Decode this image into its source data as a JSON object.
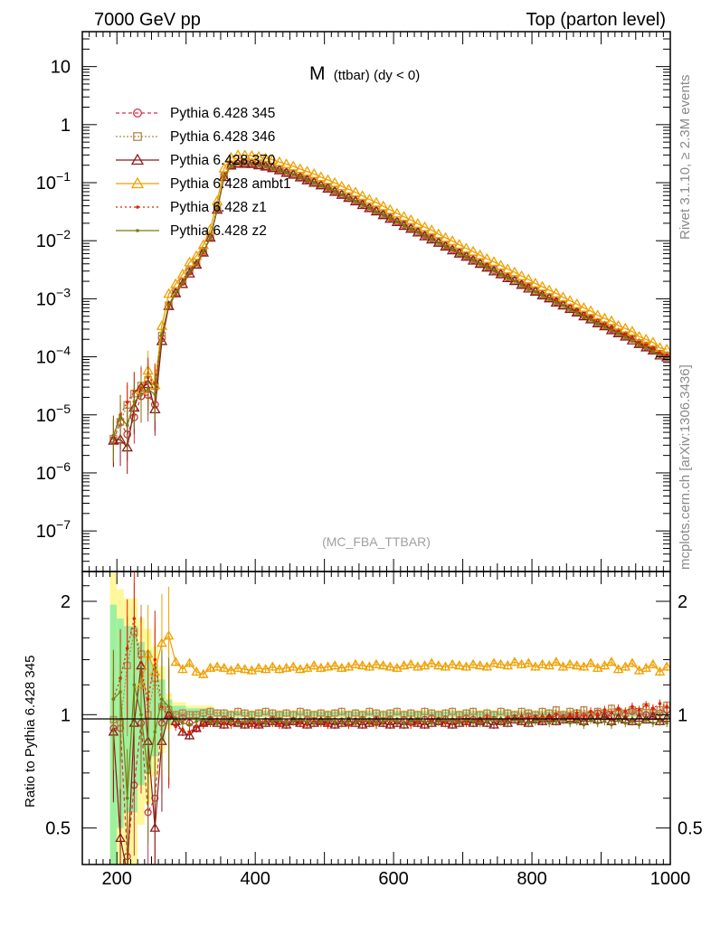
{
  "header": {
    "left": "7000 GeV pp",
    "right": "Top (parton level)"
  },
  "side_labels": {
    "top": "Rivet 3.1.10, ≥ 2.3M events",
    "bottom": "mcplots.cern.ch [arXiv:1306.3436]"
  },
  "main_title": {
    "main": "M",
    "sub": "(ttbar) (dy < 0)"
  },
  "analysis_label": "(MC_FBA_TTBAR)",
  "ratio_ylabel": "Ratio to Pythia 6.428 345",
  "chart_data": {
    "type": "line",
    "x_range": [
      150,
      1000
    ],
    "upper": {
      "yscale": "log",
      "ylim": [
        2e-08,
        40
      ],
      "y_tick_labels": [
        {
          "v": 10,
          "base": "10",
          "exp": ""
        },
        {
          "v": 1,
          "base": "1",
          "exp": ""
        },
        {
          "v": 0.1,
          "base": "10",
          "exp": "−1"
        },
        {
          "v": 0.01,
          "base": "10",
          "exp": "−2"
        },
        {
          "v": 0.001,
          "base": "10",
          "exp": "−3"
        },
        {
          "v": 0.0001,
          "base": "10",
          "exp": "−4"
        },
        {
          "v": 1e-05,
          "base": "10",
          "exp": "−5"
        },
        {
          "v": 1e-06,
          "base": "10",
          "exp": "−6"
        },
        {
          "v": 1e-07,
          "base": "10",
          "exp": "−7"
        }
      ]
    },
    "lower": {
      "yscale": "log",
      "ylim": [
        0.4,
        2.4
      ],
      "y_tick_labels": [
        {
          "v": 2,
          "label": "2"
        },
        {
          "v": 1,
          "label": "1"
        },
        {
          "v": 0.5,
          "label": "0.5"
        }
      ]
    },
    "x_tick_labels": [
      200,
      400,
      600,
      800,
      1000
    ],
    "legend_position": "top-left",
    "x": [
      185,
      195,
      205,
      215,
      225,
      235,
      245,
      255,
      265,
      275,
      285,
      295,
      305,
      315,
      325,
      335,
      345,
      355,
      365,
      375,
      385,
      395,
      405,
      415,
      425,
      435,
      445,
      455,
      465,
      475,
      485,
      495,
      505,
      515,
      525,
      535,
      545,
      555,
      565,
      575,
      585,
      595,
      605,
      615,
      625,
      635,
      645,
      655,
      665,
      675,
      685,
      695,
      705,
      715,
      725,
      735,
      745,
      755,
      765,
      775,
      785,
      795,
      805,
      815,
      825,
      835,
      845,
      855,
      865,
      875,
      885,
      895,
      905,
      915,
      925,
      935,
      945,
      955,
      965,
      975,
      985,
      995
    ],
    "reference": [
      5e-07,
      4e-06,
      8e-06,
      1.1e-05,
      1.4e-05,
      2.2e-05,
      4e-05,
      2.5e-05,
      0.00022,
      0.00075,
      0.0013,
      0.002,
      0.0031,
      0.0042,
      0.0066,
      0.0118,
      0.036,
      0.133,
      0.206,
      0.224,
      0.225,
      0.222,
      0.212,
      0.2,
      0.186,
      0.172,
      0.157,
      0.143,
      0.13,
      0.117,
      0.105,
      0.0938,
      0.0833,
      0.0738,
      0.0651,
      0.0572,
      0.0502,
      0.0439,
      0.0383,
      0.0334,
      0.0291,
      0.0254,
      0.0221,
      0.0192,
      0.0167,
      0.0146,
      0.0127,
      0.0111,
      0.00962,
      0.00837,
      0.00728,
      0.00633,
      0.00551,
      0.00479,
      0.00417,
      0.00363,
      0.00316,
      0.00275,
      0.00239,
      0.00208,
      0.00181,
      0.00158,
      0.00137,
      0.00119,
      0.00104,
      0.0009,
      0.00079,
      0.00068,
      0.0006,
      0.00052,
      0.00045,
      0.00039,
      0.00034,
      0.0003,
      0.00026,
      0.00023,
      0.0002,
      0.00017,
      0.00015,
      0.00013,
      0.00011,
      0.0001
    ],
    "reference_band": [
      {
        "x": [
          190,
          200
        ],
        "rel": 1.2
      },
      {
        "x": [
          200,
          210
        ],
        "rel": 1.0
      },
      {
        "x": [
          210,
          220
        ],
        "rel": 0.9
      },
      {
        "x": [
          220,
          230
        ],
        "rel": 0.9
      },
      {
        "x": [
          230,
          240
        ],
        "rel": 0.7
      },
      {
        "x": [
          240,
          250
        ],
        "rel": 0.6
      },
      {
        "x": [
          250,
          260
        ],
        "rel": 0.45
      },
      {
        "x": [
          260,
          270
        ],
        "rel": 0.3
      },
      {
        "x": [
          270,
          280
        ],
        "rel": 0.12
      },
      {
        "x": [
          280,
          300
        ],
        "rel": 0.07
      },
      {
        "x": [
          300,
          340
        ],
        "rel": 0.05
      },
      {
        "x": [
          340,
          1000
        ],
        "rel": 0.025
      }
    ],
    "series": [
      {
        "name": "Pythia 6.428 345",
        "color": "#cc3344",
        "marker": "circle",
        "dash": "4,3",
        "ratio": [
          0,
          0.92,
          0.92,
          0.42,
          0.65,
          0.95,
          0.55,
          0.6,
          0.95,
          1.0,
          0.95,
          0.98,
          0.95,
          0.92,
          0.95,
          0.97,
          0.96,
          0.97,
          0.96,
          0.95,
          0.96,
          0.96,
          0.95,
          0.96,
          0.97,
          0.96,
          0.95,
          0.96,
          0.96,
          0.97,
          0.96,
          0.96,
          0.97,
          0.96,
          0.96,
          0.95,
          0.96,
          0.97,
          0.96,
          0.97,
          0.96,
          0.97,
          0.96,
          0.97,
          0.96,
          0.96,
          0.97,
          0.98,
          0.96,
          0.97,
          0.96,
          0.97,
          0.98,
          0.97,
          0.96,
          0.98,
          0.97,
          0.96,
          0.97,
          0.98,
          0.97,
          0.99,
          0.98,
          0.97,
          0.98,
          0.99,
          0.98,
          0.99,
          0.98,
          0.99,
          1.0,
          1.01,
          1.0,
          0.99,
          1.01,
          1.0,
          1.02,
          1.01,
          1.0,
          1.02,
          1.01,
          1.03
        ]
      },
      {
        "name": "Pythia 6.428 346",
        "color": "#b8864a",
        "marker": "square",
        "dash": "2,2",
        "ratio": [
          0,
          0.97,
          0.95,
          1.35,
          1.66,
          1.45,
          1.0,
          1.25,
          1.05,
          1.03,
          1.0,
          1.01,
          1.0,
          1.0,
          1.01,
          1.02,
          1.01,
          1.01,
          1.0,
          1.02,
          1.01,
          1.0,
          1.01,
          1.02,
          1.01,
          1.0,
          1.01,
          1.0,
          1.02,
          1.01,
          1.0,
          1.01,
          1.0,
          1.01,
          1.02,
          1.0,
          1.01,
          1.0,
          1.02,
          1.01,
          1.0,
          1.01,
          1.02,
          1.0,
          1.01,
          1.0,
          1.02,
          1.01,
          1.0,
          1.01,
          1.02,
          1.0,
          1.01,
          1.02,
          1.0,
          1.01,
          1.0,
          1.02,
          1.01,
          1.0,
          1.02,
          1.01,
          1.0,
          1.02,
          1.01,
          1.03,
          1.0,
          1.02,
          1.01,
          1.03,
          1.0,
          1.02,
          1.01,
          1.04,
          1.02,
          1.01,
          1.03,
          1.02,
          1.05,
          1.01,
          1.03,
          1.06
        ]
      },
      {
        "name": "Pythia 6.428 370",
        "color": "#8b1a1a",
        "marker": "triangle",
        "dash": "",
        "ratio": [
          0,
          0.9,
          0.47,
          0.25,
          0.95,
          1.35,
          0.85,
          0.5,
          0.85,
          1.0,
          0.96,
          0.9,
          0.88,
          0.92,
          0.95,
          0.96,
          0.95,
          0.94,
          0.96,
          0.95,
          0.94,
          0.95,
          0.94,
          0.95,
          0.96,
          0.95,
          0.94,
          0.96,
          0.95,
          0.94,
          0.95,
          0.96,
          0.95,
          0.94,
          0.95,
          0.96,
          0.95,
          0.94,
          0.95,
          0.96,
          0.95,
          0.94,
          0.95,
          0.94,
          0.96,
          0.95,
          0.94,
          0.95,
          0.96,
          0.95,
          0.94,
          0.95,
          0.96,
          0.95,
          0.96,
          0.95,
          0.94,
          0.96,
          0.95,
          0.97,
          0.96,
          0.95,
          0.97,
          0.96,
          0.98,
          0.96,
          0.97,
          0.98,
          0.97,
          0.96,
          0.98,
          0.97,
          0.99,
          0.96,
          0.98,
          0.97,
          0.96,
          0.98,
          0.97,
          0.99,
          0.96,
          0.98
        ]
      },
      {
        "name": "Pythia 6.428 ambt1",
        "color": "#f0a000",
        "marker": "triangle",
        "dash": "",
        "ratio": [
          0,
          0.0,
          0.0,
          0.0,
          0.0,
          1.2,
          1.45,
          1.3,
          1.55,
          1.62,
          1.38,
          1.32,
          1.37,
          1.3,
          1.28,
          1.33,
          1.34,
          1.33,
          1.31,
          1.33,
          1.32,
          1.31,
          1.33,
          1.32,
          1.34,
          1.32,
          1.33,
          1.34,
          1.32,
          1.33,
          1.35,
          1.33,
          1.34,
          1.35,
          1.33,
          1.34,
          1.36,
          1.35,
          1.34,
          1.36,
          1.35,
          1.34,
          1.33,
          1.35,
          1.36,
          1.34,
          1.35,
          1.37,
          1.35,
          1.34,
          1.36,
          1.35,
          1.34,
          1.36,
          1.35,
          1.34,
          1.37,
          1.36,
          1.35,
          1.38,
          1.36,
          1.37,
          1.34,
          1.36,
          1.35,
          1.38,
          1.34,
          1.36,
          1.35,
          1.34,
          1.37,
          1.33,
          1.35,
          1.38,
          1.32,
          1.34,
          1.37,
          1.31,
          1.33,
          1.36,
          1.3,
          1.34
        ]
      },
      {
        "name": "Pythia 6.428 z1",
        "color": "#dd2200",
        "marker": "dot",
        "dash": "2,3",
        "ratio": [
          0,
          1.1,
          1.25,
          1.5,
          1.8,
          1.3,
          1.1,
          1.4,
          1.05,
          0.98,
          0.93,
          0.91,
          0.9,
          0.93,
          0.94,
          0.95,
          0.96,
          0.95,
          0.94,
          0.96,
          0.95,
          0.94,
          0.95,
          0.96,
          0.95,
          0.94,
          0.95,
          0.96,
          0.95,
          0.94,
          0.96,
          0.95,
          0.94,
          0.96,
          0.95,
          0.94,
          0.95,
          0.96,
          0.95,
          0.94,
          0.96,
          0.95,
          0.96,
          0.95,
          0.94,
          0.96,
          0.95,
          0.97,
          0.96,
          0.95,
          0.97,
          0.96,
          0.95,
          0.97,
          0.96,
          0.98,
          0.97,
          0.96,
          0.98,
          0.97,
          0.99,
          0.98,
          0.97,
          0.99,
          0.98,
          1.0,
          0.98,
          0.99,
          1.01,
          0.99,
          1.02,
          1.0,
          1.03,
          1.01,
          1.04,
          1.02,
          1.05,
          1.03,
          1.06,
          1.04,
          1.07,
          1.05
        ]
      },
      {
        "name": "Pythia 6.428 z2",
        "color": "#7a7a10",
        "marker": "dot",
        "dash": "",
        "ratio": [
          0,
          1.1,
          1.15,
          0.6,
          1.2,
          1.0,
          0.7,
          0.9,
          1.1,
          1.05,
          0.97,
          0.95,
          0.94,
          0.96,
          0.97,
          0.96,
          0.95,
          0.97,
          0.96,
          0.95,
          0.96,
          0.97,
          0.96,
          0.95,
          0.96,
          0.97,
          0.95,
          0.96,
          0.97,
          0.96,
          0.95,
          0.96,
          0.97,
          0.96,
          0.95,
          0.96,
          0.95,
          0.97,
          0.96,
          0.95,
          0.96,
          0.97,
          0.96,
          0.95,
          0.96,
          0.97,
          0.96,
          0.95,
          0.96,
          0.97,
          0.96,
          0.95,
          0.97,
          0.96,
          0.95,
          0.96,
          0.97,
          0.96,
          0.95,
          0.97,
          0.96,
          0.95,
          0.96,
          0.97,
          0.95,
          0.96,
          0.97,
          0.95,
          0.96,
          0.94,
          0.97,
          0.95,
          0.96,
          0.94,
          0.97,
          0.95,
          0.96,
          0.94,
          0.97,
          0.95,
          0.96,
          0.95
        ]
      }
    ]
  }
}
